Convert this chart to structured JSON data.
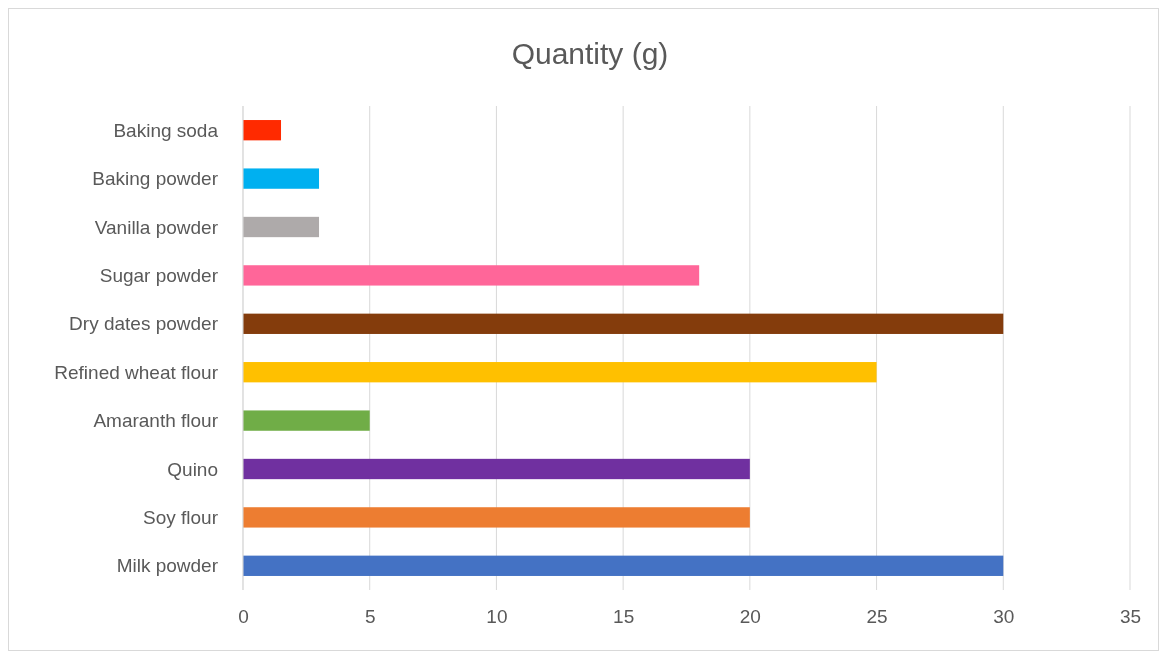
{
  "chart_data": {
    "type": "bar",
    "orientation": "horizontal",
    "title": "Quantity (g)",
    "categories": [
      "Baking soda",
      "Baking powder",
      "Vanilla powder",
      "Sugar powder",
      "Dry dates powder",
      "Refined wheat flour",
      "Amaranth flour",
      "Quino",
      "Soy flour",
      "Milk powder"
    ],
    "values": [
      1.5,
      3,
      3,
      18,
      30,
      25,
      5,
      20,
      20,
      30
    ],
    "colors": [
      "#ff2a00",
      "#00b0f0",
      "#aeaaaa",
      "#ff6699",
      "#843c0c",
      "#ffc000",
      "#70ad47",
      "#7030a0",
      "#ed7d31",
      "#4472c4"
    ],
    "xlim": [
      0,
      35
    ],
    "xticks": [
      0,
      5,
      10,
      15,
      20,
      25,
      30,
      35
    ],
    "grid": "x"
  }
}
